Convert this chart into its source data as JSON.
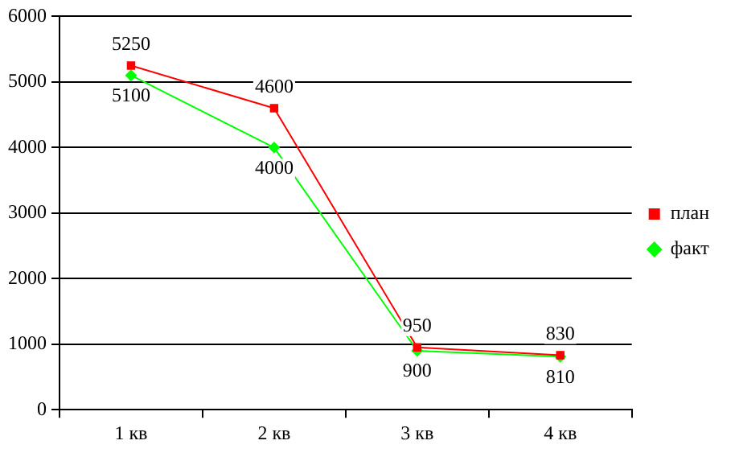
{
  "chart_data": {
    "type": "line",
    "categories": [
      "1 кв",
      "2 кв",
      "3 кв",
      "4 кв"
    ],
    "series": [
      {
        "name": "план",
        "color": "#ff0000",
        "marker": "square",
        "values": [
          5250,
          4600,
          950,
          830
        ]
      },
      {
        "name": "факт",
        "color": "#00ff00",
        "marker": "diamond",
        "values": [
          5100,
          4000,
          900,
          810
        ]
      }
    ],
    "ylim": [
      0,
      6000
    ],
    "yticks": [
      0,
      1000,
      2000,
      3000,
      4000,
      5000,
      6000
    ],
    "grid": "y",
    "legend": "right",
    "data_labels": true,
    "line_style": "solid"
  }
}
